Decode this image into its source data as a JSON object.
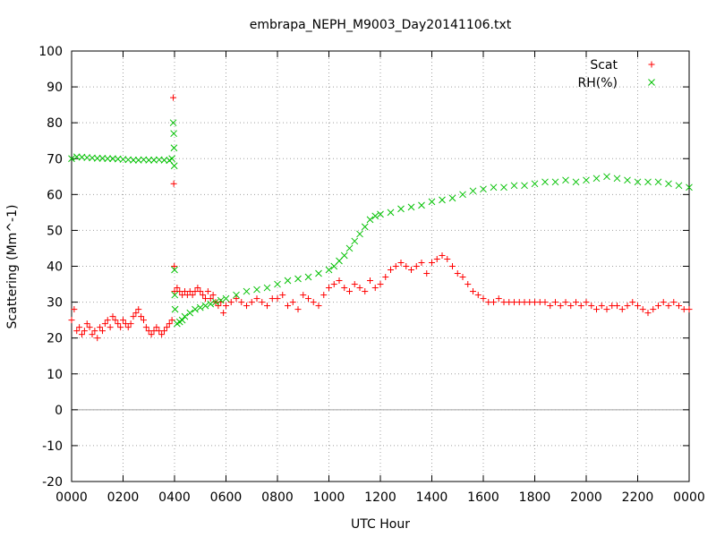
{
  "chart_data": {
    "type": "scatter",
    "title": "embrapa_NEPH_M9003_Day20141106.txt",
    "xlabel": "UTC Hour",
    "ylabel": "Scattering (Mm^-1)",
    "xlim": [
      0,
      24
    ],
    "ylim": [
      -20,
      100
    ],
    "x_ticks": [
      0,
      2,
      4,
      6,
      8,
      10,
      12,
      14,
      16,
      18,
      20,
      22,
      24
    ],
    "x_tick_labels": [
      "0000",
      "0200",
      "0400",
      "0600",
      "0800",
      "1000",
      "1200",
      "1400",
      "1600",
      "1800",
      "2000",
      "2200",
      "0000"
    ],
    "y_ticks": [
      -20,
      -10,
      0,
      10,
      20,
      30,
      40,
      50,
      60,
      70,
      80,
      90,
      100
    ],
    "y_tick_labels": [
      "-20",
      "-10",
      "0",
      "10",
      "20",
      "30",
      "40",
      "50",
      "60",
      "70",
      "80",
      "90",
      "100"
    ],
    "grid": true,
    "zero_line": true,
    "legend_position": "top-right",
    "series": [
      {
        "name": "Scat",
        "marker": "+",
        "color": "#ff0000",
        "x": [
          0.0,
          0.1,
          0.2,
          0.3,
          0.4,
          0.5,
          0.6,
          0.7,
          0.8,
          0.9,
          1.0,
          1.1,
          1.2,
          1.3,
          1.4,
          1.5,
          1.6,
          1.7,
          1.8,
          1.9,
          2.0,
          2.1,
          2.2,
          2.3,
          2.4,
          2.5,
          2.6,
          2.7,
          2.8,
          2.9,
          3.0,
          3.1,
          3.2,
          3.3,
          3.4,
          3.5,
          3.6,
          3.7,
          3.8,
          3.9,
          3.95,
          3.97,
          3.99,
          4.0,
          4.1,
          4.2,
          4.3,
          4.4,
          4.5,
          4.6,
          4.7,
          4.8,
          4.9,
          5.0,
          5.1,
          5.2,
          5.3,
          5.4,
          5.5,
          5.6,
          5.7,
          5.8,
          5.9,
          6.0,
          6.2,
          6.4,
          6.6,
          6.8,
          7.0,
          7.2,
          7.4,
          7.6,
          7.8,
          8.0,
          8.2,
          8.4,
          8.6,
          8.8,
          9.0,
          9.2,
          9.4,
          9.6,
          9.8,
          10.0,
          10.2,
          10.4,
          10.6,
          10.8,
          11.0,
          11.2,
          11.4,
          11.6,
          11.8,
          12.0,
          12.2,
          12.4,
          12.6,
          12.8,
          13.0,
          13.2,
          13.4,
          13.6,
          13.8,
          14.0,
          14.2,
          14.4,
          14.6,
          14.8,
          15.0,
          15.2,
          15.4,
          15.6,
          15.8,
          16.0,
          16.2,
          16.4,
          16.6,
          16.8,
          17.0,
          17.2,
          17.4,
          17.6,
          17.8,
          18.0,
          18.2,
          18.4,
          18.6,
          18.8,
          19.0,
          19.2,
          19.4,
          19.6,
          19.8,
          20.0,
          20.2,
          20.4,
          20.6,
          20.8,
          21.0,
          21.2,
          21.4,
          21.6,
          21.8,
          22.0,
          22.2,
          22.4,
          22.6,
          22.8,
          23.0,
          23.2,
          23.4,
          23.6,
          23.8,
          24.0
        ],
        "y": [
          25,
          28,
          22,
          23,
          21,
          22,
          24,
          23,
          21,
          22,
          20,
          23,
          22,
          24,
          25,
          23,
          26,
          25,
          24,
          23,
          25,
          24,
          23,
          24,
          26,
          27,
          28,
          26,
          25,
          23,
          22,
          21,
          22,
          23,
          22,
          21,
          22,
          23,
          24,
          25,
          87,
          63,
          40,
          33,
          34,
          33,
          32,
          33,
          32,
          33,
          32,
          33,
          34,
          33,
          32,
          31,
          33,
          31,
          32,
          30,
          29,
          30,
          27,
          29,
          30,
          31,
          30,
          29,
          30,
          31,
          30,
          29,
          31,
          31,
          32,
          29,
          30,
          28,
          32,
          31,
          30,
          29,
          32,
          34,
          35,
          36,
          34,
          33,
          35,
          34,
          33,
          36,
          34,
          35,
          37,
          39,
          40,
          41,
          40,
          39,
          40,
          41,
          38,
          41,
          42,
          43,
          42,
          40,
          38,
          37,
          35,
          33,
          32,
          31,
          30,
          30,
          31,
          30,
          30,
          30,
          30,
          30,
          30,
          30,
          30,
          30,
          29,
          30,
          29,
          30,
          29,
          30,
          29,
          30,
          29,
          28,
          29,
          28,
          29,
          29,
          28,
          29,
          30,
          29,
          28,
          27,
          28,
          29,
          30,
          29,
          30,
          29,
          28,
          28
        ]
      },
      {
        "name": "RH(%)",
        "marker": "x",
        "color": "#00c000",
        "x": [
          0.0,
          0.2,
          0.4,
          0.6,
          0.8,
          1.0,
          1.2,
          1.4,
          1.6,
          1.8,
          2.0,
          2.2,
          2.4,
          2.6,
          2.8,
          3.0,
          3.2,
          3.4,
          3.6,
          3.8,
          3.9,
          3.95,
          3.97,
          3.98,
          3.99,
          4.0,
          4.01,
          4.02,
          4.1,
          4.2,
          4.3,
          4.4,
          4.6,
          4.8,
          5.0,
          5.2,
          5.4,
          5.6,
          5.8,
          6.0,
          6.4,
          6.8,
          7.2,
          7.6,
          8.0,
          8.4,
          8.8,
          9.2,
          9.6,
          10.0,
          10.2,
          10.4,
          10.6,
          10.8,
          11.0,
          11.2,
          11.4,
          11.6,
          11.8,
          12.0,
          12.4,
          12.8,
          13.2,
          13.6,
          14.0,
          14.4,
          14.8,
          15.2,
          15.6,
          16.0,
          16.4,
          16.8,
          17.2,
          17.6,
          18.0,
          18.4,
          18.8,
          19.2,
          19.6,
          20.0,
          20.4,
          20.8,
          21.2,
          21.6,
          22.0,
          22.4,
          22.8,
          23.2,
          23.6,
          24.0
        ],
        "y": [
          70,
          70.5,
          70.4,
          70.3,
          70.2,
          70.1,
          70.1,
          70.0,
          70.0,
          69.9,
          69.8,
          69.7,
          69.6,
          69.6,
          69.7,
          69.6,
          69.6,
          69.7,
          69.6,
          69.5,
          70.0,
          80.0,
          77.0,
          73.0,
          68.0,
          39.0,
          32.0,
          28.0,
          24.0,
          24.5,
          25.0,
          26.0,
          27.0,
          28.0,
          28.5,
          29.0,
          29.5,
          30.0,
          30.5,
          31.0,
          32.0,
          33.0,
          33.5,
          34.0,
          35.0,
          36.0,
          36.5,
          37.0,
          38.0,
          39.0,
          40.0,
          41.5,
          43.0,
          45.0,
          47.0,
          49.0,
          51.0,
          53.0,
          54.0,
          54.5,
          55.0,
          56.0,
          56.5,
          57.0,
          58.0,
          58.5,
          59.0,
          60.0,
          61.0,
          61.5,
          62.0,
          62.0,
          62.5,
          62.5,
          63.0,
          63.5,
          63.5,
          64.0,
          63.5,
          64.0,
          64.5,
          65.0,
          64.5,
          64.0,
          63.5,
          63.5,
          63.5,
          63.0,
          62.5,
          62.0
        ]
      }
    ]
  }
}
